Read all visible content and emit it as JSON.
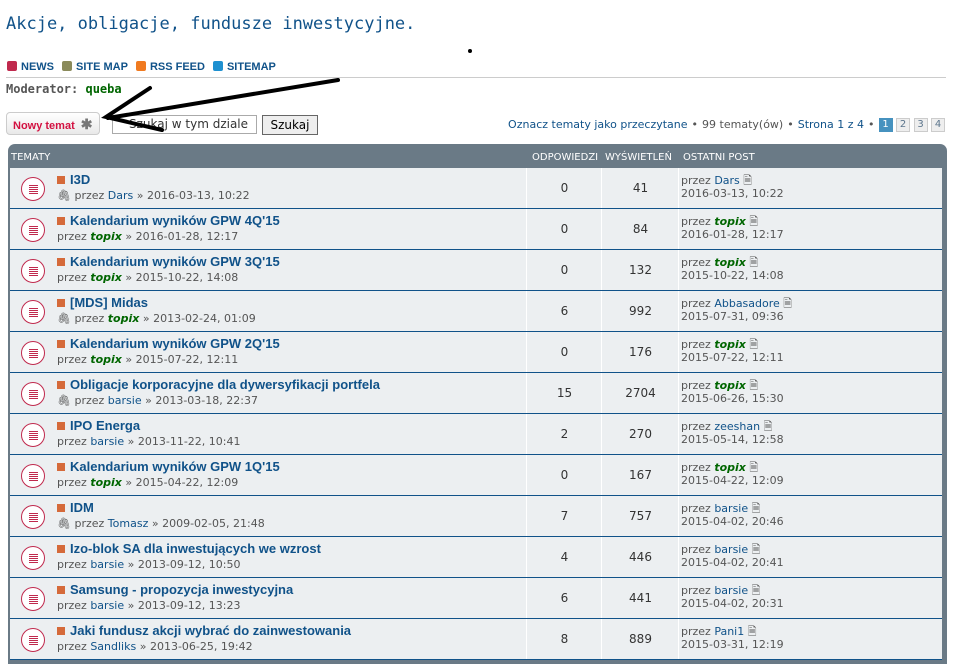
{
  "title": "Akcje, obligacje, fundusze inwestycyjne.",
  "nav": [
    {
      "label": "NEWS",
      "icon": "news-icon",
      "color": "#c0294d"
    },
    {
      "label": "SITE MAP",
      "icon": "sitemap-person-icon",
      "color": "#8a8a5a"
    },
    {
      "label": "RSS FEED",
      "icon": "rss-icon",
      "color": "#f07a20"
    },
    {
      "label": "SITEMAP",
      "icon": "sitemap-icon",
      "color": "#1e90d0"
    }
  ],
  "moderator": {
    "label": "Moderator:",
    "name": "queba"
  },
  "new_topic": "Nowy temat",
  "search": {
    "value": "Szukaj w tym dziale",
    "button": "Szukaj"
  },
  "pagination": {
    "mark_read": "Oznacz tematy jako przeczytane",
    "count": "99 tematy(ów)",
    "page": "Strona 1 z 4",
    "pages": [
      "1",
      "2",
      "3",
      "4"
    ],
    "current": "1"
  },
  "headers": {
    "topics": "TEMATY",
    "replies": "ODPOWIEDZI",
    "views": "WYŚWIETLEŃ",
    "last": "OSTATNI POST"
  },
  "by": "przez",
  "topics": [
    {
      "title": "I3D",
      "author": "Dars",
      "date": "2016-03-13, 10:22",
      "replies": "0",
      "views": "41",
      "last_author": "Dars",
      "last_date": "2016-03-13, 10:22",
      "attach": true
    },
    {
      "title": "Kalendarium wyników GPW 4Q'15",
      "author": "topix",
      "date": "2016-01-28, 12:17",
      "replies": "0",
      "views": "84",
      "last_author": "topix",
      "last_date": "2016-01-28, 12:17"
    },
    {
      "title": "Kalendarium wyników GPW 3Q'15",
      "author": "topix",
      "date": "2015-10-22, 14:08",
      "replies": "0",
      "views": "132",
      "last_author": "topix",
      "last_date": "2015-10-22, 14:08"
    },
    {
      "title": "[MDS] Midas",
      "author": "topix",
      "date": "2013-02-24, 01:09",
      "replies": "6",
      "views": "992",
      "last_author": "Abbasadore",
      "last_date": "2015-07-31, 09:36",
      "attach": true
    },
    {
      "title": "Kalendarium wyników GPW 2Q'15",
      "author": "topix",
      "date": "2015-07-22, 12:11",
      "replies": "0",
      "views": "176",
      "last_author": "topix",
      "last_date": "2015-07-22, 12:11"
    },
    {
      "title": "Obligacje korporacyjne dla dywersyfikacji portfela",
      "author": "barsie",
      "date": "2013-03-18, 22:37",
      "replies": "15",
      "views": "2704",
      "last_author": "topix",
      "last_date": "2015-06-26, 15:30",
      "attach": true
    },
    {
      "title": "IPO Energa",
      "author": "barsie",
      "date": "2013-11-22, 10:41",
      "replies": "2",
      "views": "270",
      "last_author": "zeeshan",
      "last_date": "2015-05-14, 12:58"
    },
    {
      "title": "Kalendarium wyników GPW 1Q'15",
      "author": "topix",
      "date": "2015-04-22, 12:09",
      "replies": "0",
      "views": "167",
      "last_author": "topix",
      "last_date": "2015-04-22, 12:09"
    },
    {
      "title": "IDM",
      "author": "Tomasz",
      "date": "2009-02-05, 21:48",
      "replies": "7",
      "views": "757",
      "last_author": "barsie",
      "last_date": "2015-04-02, 20:46",
      "attach": true
    },
    {
      "title": "Izo-blok SA dla inwestujących we wzrost",
      "author": "barsie",
      "date": "2013-09-12, 10:50",
      "replies": "4",
      "views": "446",
      "last_author": "barsie",
      "last_date": "2015-04-02, 20:41"
    },
    {
      "title": "Samsung - propozycja inwestycyjna",
      "author": "barsie",
      "date": "2013-09-12, 13:23",
      "replies": "6",
      "views": "441",
      "last_author": "barsie",
      "last_date": "2015-04-02, 20:31"
    },
    {
      "title": "Jaki fundusz akcji wybrać do zainwestowania",
      "author": "Sandliks",
      "date": "2013-06-25, 19:42",
      "replies": "8",
      "views": "889",
      "last_author": "Pani1",
      "last_date": "2015-03-31, 12:19"
    }
  ],
  "special_users": [
    "topix"
  ]
}
